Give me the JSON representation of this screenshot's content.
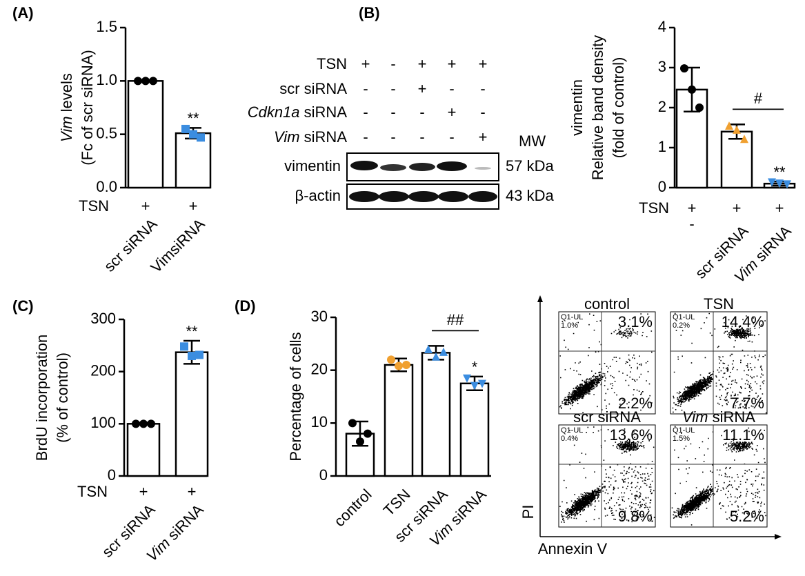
{
  "panel_labels": [
    "(A)",
    "(B)",
    "(C)",
    "(D)"
  ],
  "chart_data": [
    {
      "type": "bar",
      "ylabel": [
        [
          {
            "text": "Vim",
            "italic": true
          },
          {
            "text": "  levels"
          }
        ],
        "(Fc of scr siRNA)"
      ],
      "ylim": [
        0,
        1.5
      ],
      "yticks": [
        {
          "value": 0,
          "label": "0.0"
        },
        {
          "value": 0.5,
          "label": "0.5"
        },
        {
          "value": 1,
          "label": "1.0"
        },
        {
          "value": 1.5,
          "label": "1.5"
        }
      ],
      "categories": [
        "scr siRNA",
        "VimsiRNA"
      ],
      "values": [
        1.0,
        0.51
      ],
      "errors": [
        0,
        0.05
      ],
      "points": [
        [
          1.0,
          1.0,
          1.0
        ],
        [
          0.55,
          0.5,
          0.47
        ]
      ],
      "point_colors": [
        "#000000",
        "#3b8de0"
      ],
      "point_shapes": [
        "circle",
        "square"
      ],
      "significance": [
        null,
        "**"
      ],
      "rows": [
        {
          "label": "TSN",
          "marks": [
            "+",
            "+"
          ]
        }
      ]
    },
    {
      "type": "bar",
      "ylabel": [
        "vimentin",
        "Relative band density",
        "(fold of control)"
      ],
      "ylim": [
        0,
        4
      ],
      "yticks": [
        0,
        1,
        2,
        3,
        4
      ],
      "categories": [
        null,
        "scr siRNA",
        [
          {
            "text": "Vim",
            "italic": true
          },
          {
            "text": " siRNA"
          }
        ]
      ],
      "values": [
        2.45,
        1.4,
        0.1
      ],
      "errors": [
        0.55,
        0.18,
        0.05
      ],
      "points": [
        [
          2.98,
          2.45,
          2.0
        ],
        [
          1.55,
          1.45,
          1.22
        ],
        [
          0.13,
          0.1,
          0.08
        ]
      ],
      "point_colors": [
        "#000000",
        "#f0a030",
        "#3b8de0"
      ],
      "point_shapes": [
        "circle",
        "triangle-up",
        "triangle-down"
      ],
      "significance": [
        null,
        null,
        "**"
      ],
      "bracket": {
        "text": "#",
        "between": [
          1,
          2
        ]
      },
      "rows": [
        {
          "label": "TSN",
          "marks": [
            "+",
            "+",
            "+"
          ]
        },
        {
          "marks": [
            "-",
            null,
            null
          ]
        }
      ]
    },
    {
      "type": "bar",
      "ylabel": [
        "BrdU incorporation",
        "(% of control)"
      ],
      "ylim": [
        0,
        300
      ],
      "yticks": [
        0,
        100,
        200,
        300
      ],
      "categories": [
        "scr siRNA",
        [
          {
            "text": "Vim",
            "italic": true
          },
          {
            "text": " siRNA"
          }
        ]
      ],
      "values": [
        100,
        237
      ],
      "errors": [
        0,
        22
      ],
      "points": [
        [
          100,
          100,
          100
        ],
        [
          248,
          230,
          232
        ]
      ],
      "point_colors": [
        "#000000",
        "#3b8de0"
      ],
      "point_shapes": [
        "circle",
        "square"
      ],
      "significance": [
        null,
        "**"
      ],
      "rows": [
        {
          "label": "TSN",
          "marks": [
            "+",
            "+"
          ]
        }
      ]
    },
    {
      "type": "bar",
      "ylabel": [
        "Percentage of cells"
      ],
      "ylim": [
        0,
        30
      ],
      "yticks": [
        0,
        10,
        20,
        30
      ],
      "categories": [
        "control",
        "TSN",
        "scr siRNA",
        [
          {
            "text": "Vim",
            "italic": true
          },
          {
            "text": " siRNA"
          }
        ]
      ],
      "values": [
        8,
        21,
        23.3,
        17.5
      ],
      "errors": [
        2.3,
        1.2,
        1.3,
        1.3
      ],
      "points": [
        [
          10,
          6.5,
          8
        ],
        [
          22,
          20.8,
          21
        ],
        [
          24,
          22.6,
          23.5
        ],
        [
          18.4,
          17,
          17.4
        ]
      ],
      "point_colors": [
        "#000000",
        "#f0a030",
        "#3b8de0",
        "#3b8de0"
      ],
      "point_shapes": [
        "circle",
        "circle",
        "triangle-up",
        "triangle-down"
      ],
      "significance": [
        null,
        null,
        null,
        "*"
      ],
      "bracket": {
        "text": "##",
        "between": [
          2,
          3
        ]
      },
      "rows": []
    }
  ],
  "blot": {
    "rows": [
      {
        "label": "TSN",
        "marks": [
          "+",
          "-",
          "+",
          "+",
          "+"
        ]
      },
      {
        "label": "scr siRNA",
        "marks": [
          "-",
          "-",
          "+",
          "-",
          "-"
        ]
      },
      {
        "label": [
          {
            "text": "Cdkn1a",
            "italic": true
          },
          {
            "text": " siRNA"
          }
        ],
        "marks": [
          "-",
          "-",
          "-",
          "+",
          "-"
        ]
      },
      {
        "label": [
          {
            "text": "Vim",
            "italic": true
          },
          {
            "text": " siRNA"
          }
        ],
        "marks": [
          "-",
          "-",
          "-",
          "-",
          "+"
        ]
      }
    ],
    "mw": "MW",
    "bands": [
      {
        "label": "vimentin",
        "mw": "57 kDa"
      },
      {
        "label": "β-actin",
        "mw": "43 kDa"
      }
    ]
  },
  "flow": {
    "ylabel": "PI",
    "xlabel": "Annexin V",
    "panels": [
      {
        "title": "control",
        "ul_label": "Q1-UL",
        "ul": "1.0%",
        "ur": "3.1%",
        "lr": "2.2%"
      },
      {
        "title": "TSN",
        "ul_label": "Q1-UL",
        "ul": "0.2%",
        "ur": "14.4%",
        "lr": "7.7%"
      },
      {
        "title": "scr siRNA",
        "ul_label": "Q1-UL",
        "ul": "0.4%",
        "ur": "13.6%",
        "lr": "9.8%"
      },
      {
        "title": [
          {
            "text": "Vim",
            "italic": true
          },
          {
            "text": " siRNA"
          }
        ],
        "ul_label": "Q1-UL",
        "ul": "1.5%",
        "ur": "11.1%",
        "lr": "5.2%"
      }
    ]
  }
}
